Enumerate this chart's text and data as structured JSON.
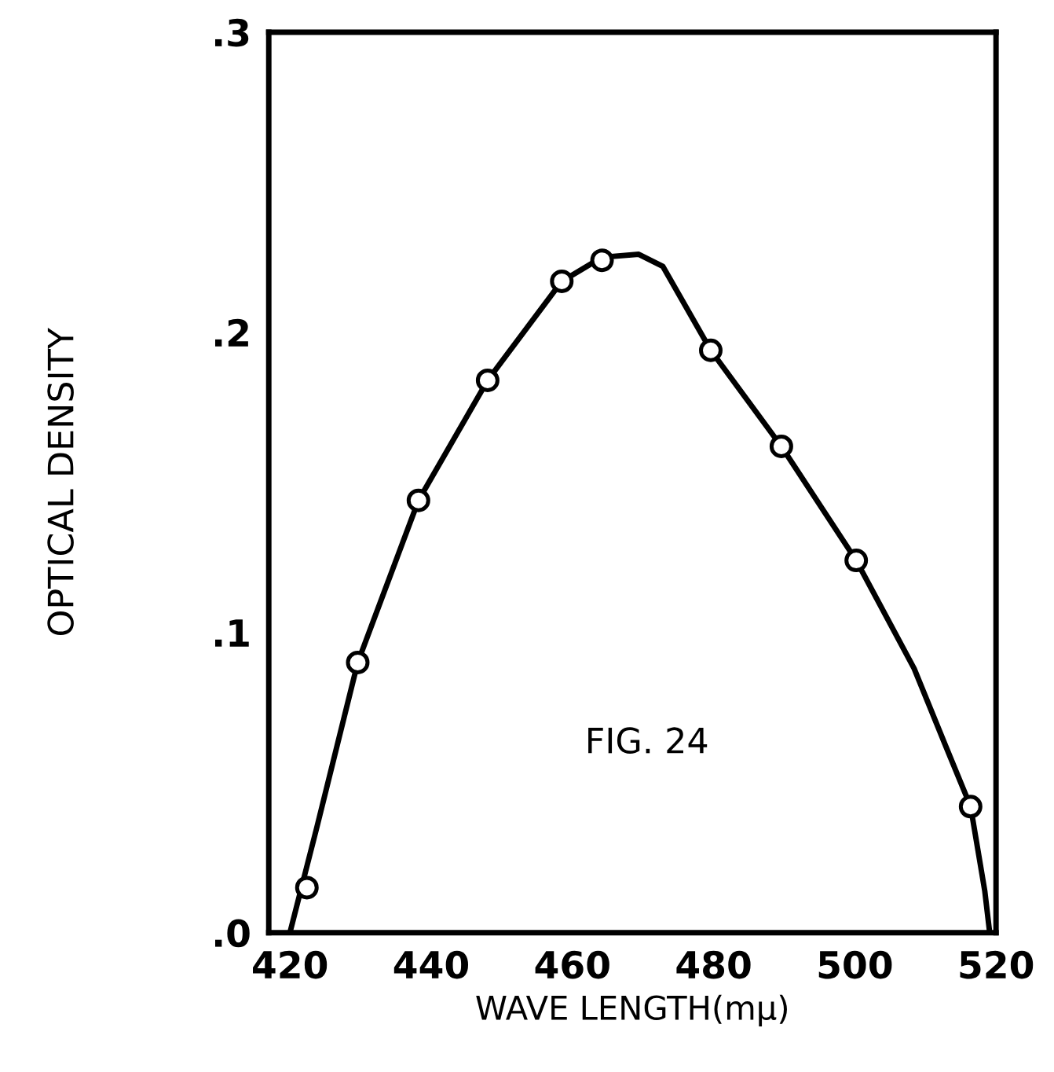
{
  "chart_data": {
    "type": "scatter",
    "xlabel": "WAVE LENGTH(mμ)",
    "ylabel": "OPTICAL DENSITY",
    "xlim": [
      417,
      520
    ],
    "ylim": [
      0,
      0.3
    ],
    "xticks": [
      420,
      440,
      460,
      480,
      500,
      520
    ],
    "yticks": [
      {
        "value": 0,
        "label": ".0"
      },
      {
        "value": 0.1,
        "label": ".1"
      },
      {
        "value": 0.2,
        "label": ".2"
      },
      {
        "value": 0.3,
        "label": ".3"
      }
    ],
    "grid": false,
    "marker": "circle",
    "color": "#000000",
    "x": [
      422.4,
      429.6,
      438.2,
      448,
      458.5,
      464.2,
      479.6,
      489.6,
      500.2,
      516.4
    ],
    "values": [
      0.015,
      0.09,
      0.144,
      0.184,
      0.217,
      0.224,
      0.194,
      0.162,
      0.124,
      0.042
    ],
    "series": [
      {
        "type": "line",
        "marker": "none",
        "color": "#000000",
        "x": [
          420,
          423.8,
          429.6,
          438.2,
          448,
          458.5,
          464.2,
          469.4,
          472.8,
          479.6,
          489.6,
          500.2,
          508.4,
          512.9,
          516.4,
          518.4,
          519.1
        ],
        "values": [
          0,
          0.035,
          0.09,
          0.144,
          0.184,
          0.217,
          0.225,
          0.226,
          0.222,
          0.194,
          0.162,
          0.124,
          0.088,
          0.062,
          0.042,
          0.014,
          0
        ]
      }
    ],
    "annotations": [
      "FIG. 24"
    ]
  }
}
